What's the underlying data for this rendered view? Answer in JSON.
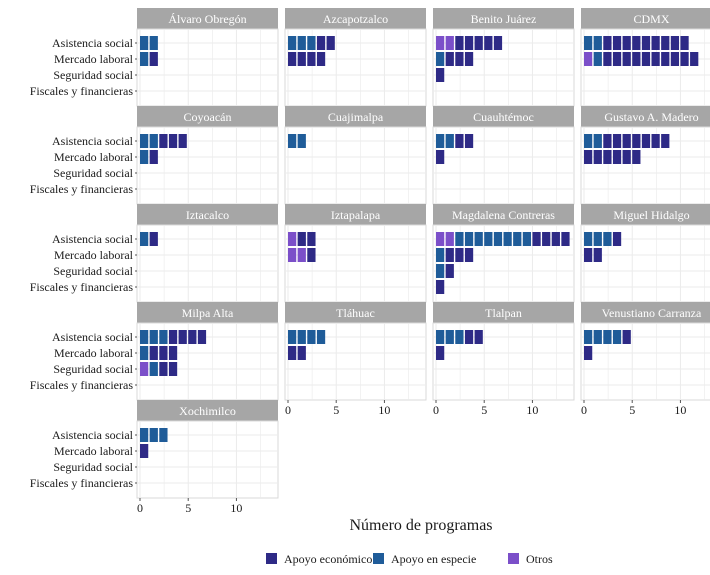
{
  "chart_data": {
    "type": "bar",
    "orientation": "horizontal",
    "style": "faceted waffle (stacked unit squares)",
    "xlabel": "Número de programas",
    "ylabel": "",
    "xlim": [
      0,
      14
    ],
    "x_ticks": [
      "0",
      "5",
      "10"
    ],
    "categories": [
      "Asistencia social",
      "Mercado laboral",
      "Seguridad social",
      "Fiscales y financieras"
    ],
    "legend": {
      "placement": "bottom",
      "items": [
        {
          "name": "Apoyo económico",
          "color": "#2e2a86"
        },
        {
          "name": "Apoyo en especie",
          "color": "#1f5c99"
        },
        {
          "name": "Otros",
          "color": "#7b4fc9"
        }
      ]
    },
    "grid": true,
    "panels": [
      {
        "title": "Álvaro Obregón",
        "values": {
          "Asistencia social": {
            "Otros": 0,
            "Apoyo en especie": 2,
            "Apoyo económico": 0
          },
          "Mercado laboral": {
            "Otros": 0,
            "Apoyo en especie": 1,
            "Apoyo económico": 1
          },
          "Seguridad social": {
            "Otros": 0,
            "Apoyo en especie": 0,
            "Apoyo económico": 0
          },
          "Fiscales y financieras": {
            "Otros": 0,
            "Apoyo en especie": 0,
            "Apoyo económico": 0
          }
        }
      },
      {
        "title": "Azcapotzalco",
        "values": {
          "Asistencia social": {
            "Otros": 0,
            "Apoyo en especie": 3,
            "Apoyo económico": 2
          },
          "Mercado laboral": {
            "Otros": 0,
            "Apoyo en especie": 0,
            "Apoyo económico": 4
          },
          "Seguridad social": {
            "Otros": 0,
            "Apoyo en especie": 0,
            "Apoyo económico": 0
          },
          "Fiscales y financieras": {
            "Otros": 0,
            "Apoyo en especie": 0,
            "Apoyo económico": 0
          }
        }
      },
      {
        "title": "Benito Juárez",
        "values": {
          "Asistencia social": {
            "Otros": 2,
            "Apoyo en especie": 0,
            "Apoyo económico": 5
          },
          "Mercado laboral": {
            "Otros": 0,
            "Apoyo en especie": 1,
            "Apoyo económico": 3
          },
          "Seguridad social": {
            "Otros": 0,
            "Apoyo en especie": 0,
            "Apoyo económico": 1
          },
          "Fiscales y financieras": {
            "Otros": 0,
            "Apoyo en especie": 0,
            "Apoyo económico": 0
          }
        }
      },
      {
        "title": "CDMX",
        "values": {
          "Asistencia social": {
            "Otros": 0,
            "Apoyo en especie": 2,
            "Apoyo económico": 9
          },
          "Mercado laboral": {
            "Otros": 1,
            "Apoyo en especie": 1,
            "Apoyo económico": 10
          },
          "Seguridad social": {
            "Otros": 0,
            "Apoyo en especie": 0,
            "Apoyo económico": 0
          },
          "Fiscales y financieras": {
            "Otros": 0,
            "Apoyo en especie": 0,
            "Apoyo económico": 0
          }
        }
      },
      {
        "title": "Coyoacán",
        "values": {
          "Asistencia social": {
            "Otros": 0,
            "Apoyo en especie": 2,
            "Apoyo económico": 3
          },
          "Mercado laboral": {
            "Otros": 0,
            "Apoyo en especie": 1,
            "Apoyo económico": 1
          },
          "Seguridad social": {
            "Otros": 0,
            "Apoyo en especie": 0,
            "Apoyo económico": 0
          },
          "Fiscales y financieras": {
            "Otros": 0,
            "Apoyo en especie": 0,
            "Apoyo económico": 0
          }
        }
      },
      {
        "title": "Cuajimalpa",
        "values": {
          "Asistencia social": {
            "Otros": 0,
            "Apoyo en especie": 2,
            "Apoyo económico": 0
          },
          "Mercado laboral": {
            "Otros": 0,
            "Apoyo en especie": 0,
            "Apoyo económico": 0
          },
          "Seguridad social": {
            "Otros": 0,
            "Apoyo en especie": 0,
            "Apoyo económico": 0
          },
          "Fiscales y financieras": {
            "Otros": 0,
            "Apoyo en especie": 0,
            "Apoyo económico": 0
          }
        }
      },
      {
        "title": "Cuauhtémoc",
        "values": {
          "Asistencia social": {
            "Otros": 0,
            "Apoyo en especie": 2,
            "Apoyo económico": 2
          },
          "Mercado laboral": {
            "Otros": 0,
            "Apoyo en especie": 0,
            "Apoyo económico": 1
          },
          "Seguridad social": {
            "Otros": 0,
            "Apoyo en especie": 0,
            "Apoyo económico": 0
          },
          "Fiscales y financieras": {
            "Otros": 0,
            "Apoyo en especie": 0,
            "Apoyo económico": 0
          }
        }
      },
      {
        "title": "Gustavo A. Madero",
        "values": {
          "Asistencia social": {
            "Otros": 0,
            "Apoyo en especie": 2,
            "Apoyo económico": 7
          },
          "Mercado laboral": {
            "Otros": 0,
            "Apoyo en especie": 0,
            "Apoyo económico": 6
          },
          "Seguridad social": {
            "Otros": 0,
            "Apoyo en especie": 0,
            "Apoyo económico": 0
          },
          "Fiscales y financieras": {
            "Otros": 0,
            "Apoyo en especie": 0,
            "Apoyo económico": 0
          }
        }
      },
      {
        "title": "Iztacalco",
        "values": {
          "Asistencia social": {
            "Otros": 0,
            "Apoyo en especie": 1,
            "Apoyo económico": 1
          },
          "Mercado laboral": {
            "Otros": 0,
            "Apoyo en especie": 0,
            "Apoyo económico": 0
          },
          "Seguridad social": {
            "Otros": 0,
            "Apoyo en especie": 0,
            "Apoyo económico": 0
          },
          "Fiscales y financieras": {
            "Otros": 0,
            "Apoyo en especie": 0,
            "Apoyo económico": 0
          }
        }
      },
      {
        "title": "Iztapalapa",
        "values": {
          "Asistencia social": {
            "Otros": 1,
            "Apoyo en especie": 0,
            "Apoyo económico": 2
          },
          "Mercado laboral": {
            "Otros": 2,
            "Apoyo en especie": 0,
            "Apoyo económico": 1
          },
          "Seguridad social": {
            "Otros": 0,
            "Apoyo en especie": 0,
            "Apoyo económico": 0
          },
          "Fiscales y financieras": {
            "Otros": 0,
            "Apoyo en especie": 0,
            "Apoyo económico": 0
          }
        }
      },
      {
        "title": "Magdalena Contreras",
        "values": {
          "Asistencia social": {
            "Otros": 2,
            "Apoyo en especie": 8,
            "Apoyo económico": 4
          },
          "Mercado laboral": {
            "Otros": 0,
            "Apoyo en especie": 1,
            "Apoyo económico": 3
          },
          "Seguridad social": {
            "Otros": 0,
            "Apoyo en especie": 1,
            "Apoyo económico": 1
          },
          "Fiscales y financieras": {
            "Otros": 0,
            "Apoyo en especie": 0,
            "Apoyo económico": 1
          }
        }
      },
      {
        "title": "Miguel Hidalgo",
        "values": {
          "Asistencia social": {
            "Otros": 0,
            "Apoyo en especie": 3,
            "Apoyo económico": 1
          },
          "Mercado laboral": {
            "Otros": 0,
            "Apoyo en especie": 0,
            "Apoyo económico": 2
          },
          "Seguridad social": {
            "Otros": 0,
            "Apoyo en especie": 0,
            "Apoyo económico": 0
          },
          "Fiscales y financieras": {
            "Otros": 0,
            "Apoyo en especie": 0,
            "Apoyo económico": 0
          }
        }
      },
      {
        "title": "Milpa Alta",
        "values": {
          "Asistencia social": {
            "Otros": 0,
            "Apoyo en especie": 3,
            "Apoyo económico": 4
          },
          "Mercado laboral": {
            "Otros": 0,
            "Apoyo en especie": 1,
            "Apoyo económico": 3
          },
          "Seguridad social": {
            "Otros": 1,
            "Apoyo en especie": 1,
            "Apoyo económico": 2
          },
          "Fiscales y financieras": {
            "Otros": 0,
            "Apoyo en especie": 0,
            "Apoyo económico": 0
          }
        }
      },
      {
        "title": "Tláhuac",
        "values": {
          "Asistencia social": {
            "Otros": 0,
            "Apoyo en especie": 4,
            "Apoyo económico": 0
          },
          "Mercado laboral": {
            "Otros": 0,
            "Apoyo en especie": 0,
            "Apoyo económico": 2
          },
          "Seguridad social": {
            "Otros": 0,
            "Apoyo en especie": 0,
            "Apoyo económico": 0
          },
          "Fiscales y financieras": {
            "Otros": 0,
            "Apoyo en especie": 0,
            "Apoyo económico": 0
          }
        }
      },
      {
        "title": "Tlalpan",
        "values": {
          "Asistencia social": {
            "Otros": 0,
            "Apoyo en especie": 3,
            "Apoyo económico": 2
          },
          "Mercado laboral": {
            "Otros": 0,
            "Apoyo en especie": 0,
            "Apoyo económico": 1
          },
          "Seguridad social": {
            "Otros": 0,
            "Apoyo en especie": 0,
            "Apoyo económico": 0
          },
          "Fiscales y financieras": {
            "Otros": 0,
            "Apoyo en especie": 0,
            "Apoyo económico": 0
          }
        }
      },
      {
        "title": "Venustiano Carranza",
        "values": {
          "Asistencia social": {
            "Otros": 0,
            "Apoyo en especie": 4,
            "Apoyo económico": 1
          },
          "Mercado laboral": {
            "Otros": 0,
            "Apoyo en especie": 0,
            "Apoyo económico": 1
          },
          "Seguridad social": {
            "Otros": 0,
            "Apoyo en especie": 0,
            "Apoyo económico": 0
          },
          "Fiscales y financieras": {
            "Otros": 0,
            "Apoyo en especie": 0,
            "Apoyo económico": 0
          }
        }
      },
      {
        "title": "Xochimilco",
        "values": {
          "Asistencia social": {
            "Otros": 0,
            "Apoyo en especie": 3,
            "Apoyo económico": 0
          },
          "Mercado laboral": {
            "Otros": 0,
            "Apoyo en especie": 0,
            "Apoyo económico": 1
          },
          "Seguridad social": {
            "Otros": 0,
            "Apoyo en especie": 0,
            "Apoyo económico": 0
          },
          "Fiscales y financieras": {
            "Otros": 0,
            "Apoyo en especie": 0,
            "Apoyo económico": 0
          }
        }
      }
    ]
  }
}
